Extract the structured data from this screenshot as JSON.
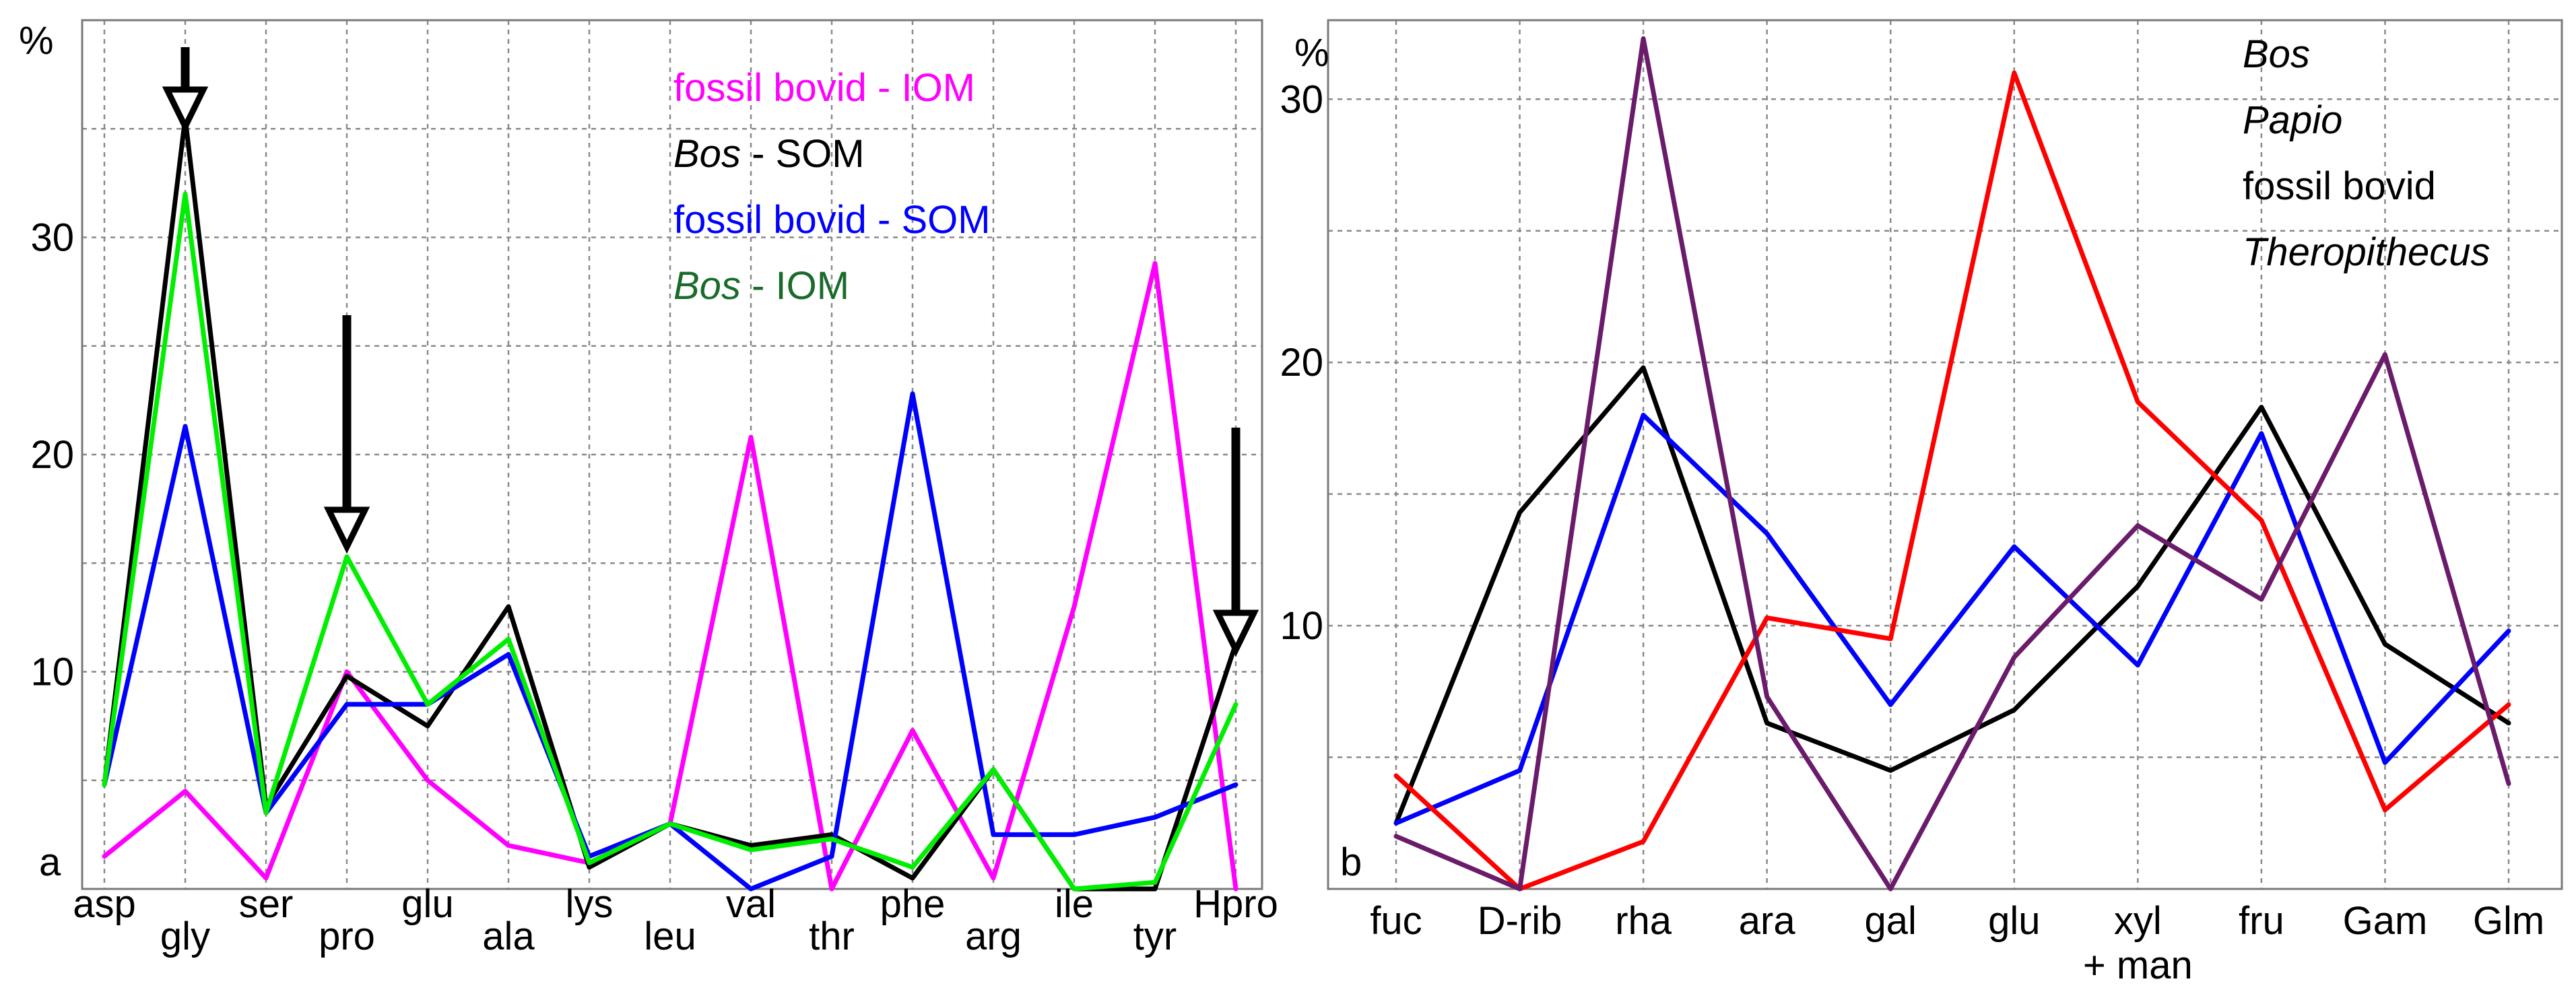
{
  "chart_data": [
    {
      "type": "line",
      "panel_label": "a",
      "ylabel": "%",
      "ylim": [
        0,
        40
      ],
      "yticks": [
        10,
        20,
        30
      ],
      "categories": [
        "asp",
        "gly",
        "ser",
        "pro",
        "glu",
        "ala",
        "lys",
        "leu",
        "val",
        "thr",
        "phe",
        "arg",
        "ile",
        "tyr",
        "Hpro"
      ],
      "series": [
        {
          "name": "fossil bovid - IOM",
          "color": "#ff00ff",
          "values": [
            1.5,
            4.5,
            0.5,
            10.0,
            5.0,
            2.0,
            1.2,
            3.0,
            20.8,
            0.0,
            7.3,
            0.5,
            13.0,
            28.8,
            0.0
          ]
        },
        {
          "name": "Bos - SOM",
          "color": "#000000",
          "values": [
            4.8,
            35.5,
            3.8,
            9.8,
            7.5,
            13.0,
            1.0,
            3.0,
            2.0,
            2.5,
            0.5,
            5.5,
            0.0,
            0.0,
            11.3
          ]
        },
        {
          "name": "fossil bovid - SOM",
          "color": "#0000ff",
          "values": [
            4.8,
            21.3,
            3.5,
            8.5,
            8.5,
            10.8,
            1.5,
            3.0,
            0.0,
            1.5,
            22.8,
            2.5,
            2.5,
            3.3,
            4.8
          ]
        },
        {
          "name": "Bos - IOM",
          "color": "#00ee00",
          "values": [
            4.8,
            32.0,
            3.5,
            15.3,
            8.5,
            11.5,
            1.2,
            3.0,
            1.8,
            2.3,
            1.0,
            5.5,
            0.0,
            0.3,
            8.5
          ]
        }
      ],
      "legend": [
        {
          "italic": "",
          "rest": "fossil bovid - IOM",
          "color": "#ff00ff"
        },
        {
          "italic": "Bos",
          "rest": " - SOM",
          "color": "#000000"
        },
        {
          "italic": "",
          "rest": "fossil bovid - SOM",
          "color": "#0000ff"
        },
        {
          "italic": "Bos",
          "rest": " - IOM",
          "color": "#00ee00",
          "italic_color": "#1a6b2a"
        }
      ],
      "legend_position": "top-right",
      "arrows_at": [
        "gly",
        "pro",
        "Hpro"
      ]
    },
    {
      "type": "line",
      "panel_label": "b",
      "ylabel": "%",
      "ylim": [
        0,
        33
      ],
      "yticks": [
        10,
        20,
        30
      ],
      "categories": [
        "fuc",
        "D-rib",
        "rha",
        "ara",
        "gal",
        "glu",
        "xyl\n+ man",
        "fru",
        "Gam",
        "Glm"
      ],
      "series": [
        {
          "name": "Bos",
          "color": "#000000",
          "values": [
            2.5,
            14.3,
            19.8,
            6.3,
            4.5,
            6.8,
            11.5,
            18.3,
            9.3,
            6.3
          ]
        },
        {
          "name": "Papio",
          "color": "#0000ff",
          "values": [
            2.5,
            4.5,
            18.0,
            13.5,
            7.0,
            13.0,
            8.5,
            17.3,
            4.8,
            9.8
          ]
        },
        {
          "name": "fossil bovid",
          "color": "#ff0000",
          "values": [
            4.3,
            0.0,
            1.8,
            10.3,
            9.5,
            31.0,
            18.5,
            14.0,
            3.0,
            7.0
          ]
        },
        {
          "name": "Theropithecus",
          "color": "#6a1b6a",
          "values": [
            2.0,
            0.0,
            32.3,
            7.3,
            0.0,
            8.8,
            13.8,
            11.0,
            20.3,
            4.0
          ]
        }
      ],
      "legend": [
        {
          "text": "Bos",
          "italic": true,
          "color": "#000000"
        },
        {
          "text": "Papio",
          "italic": true,
          "color": "#0000ff"
        },
        {
          "text": "fossil bovid",
          "italic": false,
          "color": "#ff0000"
        },
        {
          "text": "Theropithecus",
          "italic": true,
          "color": "#6a1b6a"
        }
      ],
      "legend_position": "top-right"
    }
  ]
}
